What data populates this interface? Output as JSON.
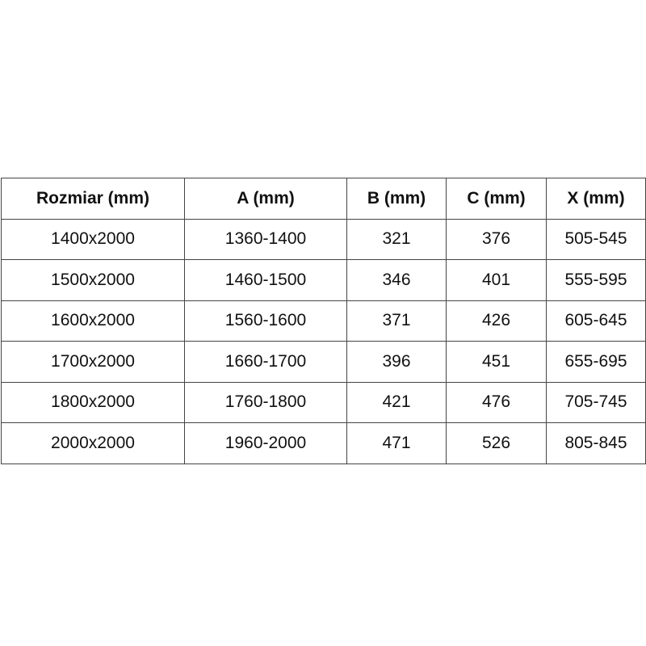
{
  "table": {
    "headers": [
      "Rozmiar (mm)",
      "A (mm)",
      "B (mm)",
      "C (mm)",
      "X (mm)"
    ],
    "rows": [
      [
        "1400x2000",
        "1360-1400",
        "321",
        "376",
        "505-545"
      ],
      [
        "1500x2000",
        "1460-1500",
        "346",
        "401",
        "555-595"
      ],
      [
        "1600x2000",
        "1560-1600",
        "371",
        "426",
        "605-645"
      ],
      [
        "1700x2000",
        "1660-1700",
        "396",
        "451",
        "655-695"
      ],
      [
        "1800x2000",
        "1760-1800",
        "421",
        "476",
        "705-745"
      ],
      [
        "2000x2000",
        "1960-2000",
        "471",
        "526",
        "805-845"
      ]
    ]
  }
}
